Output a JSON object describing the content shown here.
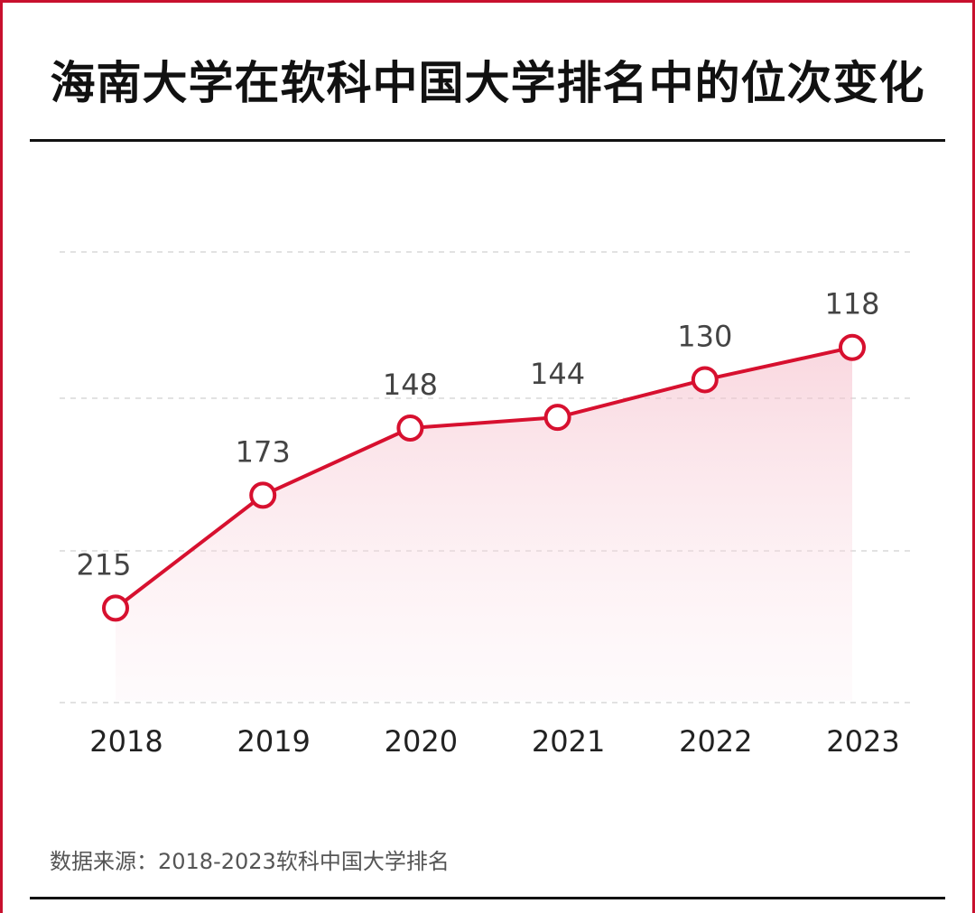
{
  "title": "海南大学在软科中国大学排名中的位次变化",
  "source": "数据来源：2018-2023软科中国大学排名",
  "colors": {
    "frame": "#c8102e",
    "line": "#d7102f",
    "fill": "#f7c9d3",
    "grid": "#d9d9d9",
    "text": "#111111",
    "label": "#444444"
  },
  "chart_data": {
    "type": "line",
    "categories": [
      "2018",
      "2019",
      "2020",
      "2021",
      "2022",
      "2023"
    ],
    "values": [
      215,
      173,
      148,
      144,
      130,
      118
    ],
    "data_labels": [
      "215",
      "173",
      "148",
      "144",
      "130",
      "118"
    ],
    "y_inverted": true,
    "grid": true,
    "area_fill": true,
    "markers": "hollow-circle"
  }
}
